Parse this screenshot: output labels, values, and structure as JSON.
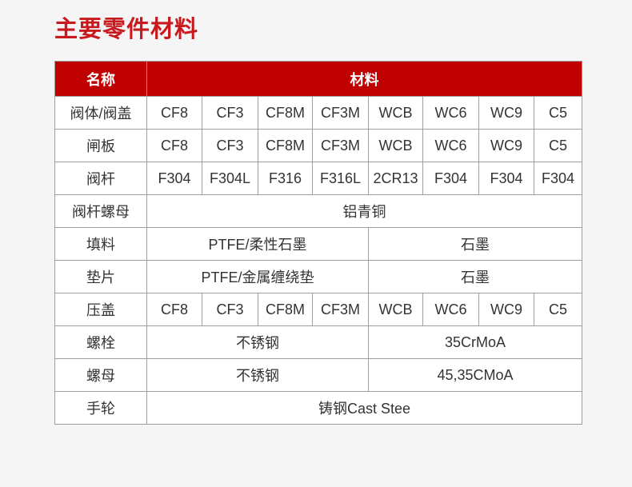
{
  "title": {
    "text": "主要零件材料"
  },
  "colors": {
    "header_red": "#c00101",
    "title_red": "#c8191e",
    "border_gray": "#9d9d9d",
    "page_bg": "#f5f5f5",
    "cell_bg": "#ffffff",
    "text": "#333333"
  },
  "table": {
    "header": {
      "name_label": "名称",
      "material_label": "材料",
      "material_span": 8
    },
    "rows": [
      {
        "label": "阀体/阀盖",
        "cells": [
          {
            "t": "CF8",
            "s": 1
          },
          {
            "t": "CF3",
            "s": 1
          },
          {
            "t": "CF8M",
            "s": 1
          },
          {
            "t": "CF3M",
            "s": 1
          },
          {
            "t": "WCB",
            "s": 1
          },
          {
            "t": "WC6",
            "s": 1
          },
          {
            "t": "WC9",
            "s": 1
          },
          {
            "t": "C5",
            "s": 1
          }
        ]
      },
      {
        "label": "闸板",
        "cells": [
          {
            "t": "CF8",
            "s": 1
          },
          {
            "t": "CF3",
            "s": 1
          },
          {
            "t": "CF8M",
            "s": 1
          },
          {
            "t": "CF3M",
            "s": 1
          },
          {
            "t": "WCB",
            "s": 1
          },
          {
            "t": "WC6",
            "s": 1
          },
          {
            "t": "WC9",
            "s": 1
          },
          {
            "t": "C5",
            "s": 1
          }
        ]
      },
      {
        "label": "阀杆",
        "cells": [
          {
            "t": "F304",
            "s": 1
          },
          {
            "t": "F304L",
            "s": 1
          },
          {
            "t": "F316",
            "s": 1
          },
          {
            "t": "F316L",
            "s": 1
          },
          {
            "t": "2CR13",
            "s": 1
          },
          {
            "t": "F304",
            "s": 1
          },
          {
            "t": "F304",
            "s": 1
          },
          {
            "t": "F304",
            "s": 1
          }
        ]
      },
      {
        "label": "阀杆螺母",
        "cells": [
          {
            "t": "铝青铜",
            "s": 8
          }
        ]
      },
      {
        "label": "填料",
        "cells": [
          {
            "t": "PTFE/柔性石墨",
            "s": 4
          },
          {
            "t": "石墨",
            "s": 4
          }
        ]
      },
      {
        "label": "垫片",
        "cells": [
          {
            "t": "PTFE/金属缠绕垫",
            "s": 4
          },
          {
            "t": "石墨",
            "s": 4
          }
        ]
      },
      {
        "label": "压盖",
        "cells": [
          {
            "t": "CF8",
            "s": 1
          },
          {
            "t": "CF3",
            "s": 1
          },
          {
            "t": "CF8M",
            "s": 1
          },
          {
            "t": "CF3M",
            "s": 1
          },
          {
            "t": "WCB",
            "s": 1
          },
          {
            "t": "WC6",
            "s": 1
          },
          {
            "t": "WC9",
            "s": 1
          },
          {
            "t": "C5",
            "s": 1
          }
        ]
      },
      {
        "label": "螺栓",
        "cells": [
          {
            "t": "不锈钢",
            "s": 4
          },
          {
            "t": "35CrMoA",
            "s": 4
          }
        ]
      },
      {
        "label": "螺母",
        "cells": [
          {
            "t": "不锈钢",
            "s": 4
          },
          {
            "t": "45,35CMoA",
            "s": 4
          }
        ]
      },
      {
        "label": "手轮",
        "cells": [
          {
            "t": "铸钢Cast Stee",
            "s": 8
          }
        ]
      }
    ]
  }
}
